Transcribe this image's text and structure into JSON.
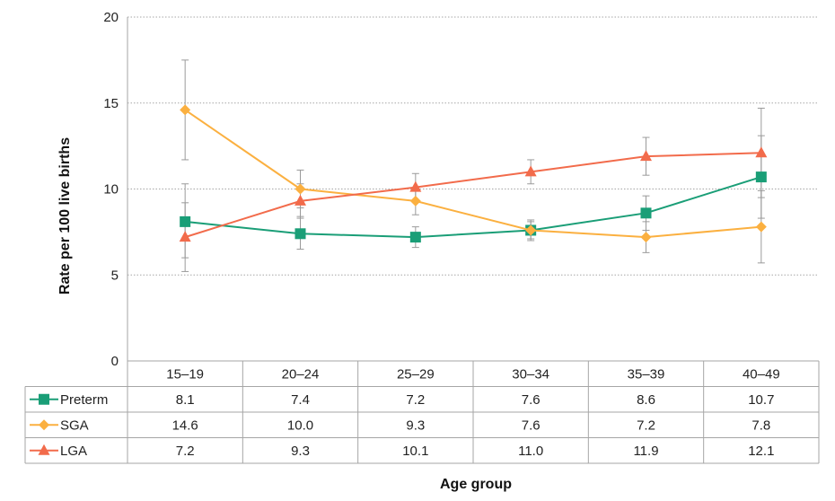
{
  "chart_data": {
    "type": "line",
    "categories": [
      "15–19",
      "20–24",
      "25–29",
      "30–34",
      "35–39",
      "40–49"
    ],
    "series": [
      {
        "name": "Preterm",
        "color": "#1a9e77",
        "marker": "square",
        "values": [
          8.1,
          7.4,
          7.2,
          7.6,
          8.6,
          10.7
        ],
        "labels": [
          "8.1",
          "7.4",
          "7.2",
          "7.6",
          "8.6",
          "10.7"
        ],
        "error_low": [
          6.0,
          6.5,
          6.6,
          7.1,
          7.6,
          8.3
        ],
        "error_high": [
          10.3,
          8.4,
          7.8,
          8.1,
          9.6,
          13.1
        ]
      },
      {
        "name": "SGA",
        "color": "#fbb040",
        "marker": "diamond",
        "values": [
          14.6,
          10.0,
          9.3,
          7.6,
          7.2,
          7.8
        ],
        "labels": [
          "14.6",
          "10.0",
          "9.3",
          "7.6",
          "7.2",
          "7.8"
        ],
        "error_low": [
          11.7,
          8.9,
          8.5,
          7.0,
          6.3,
          5.7
        ],
        "error_high": [
          17.5,
          11.1,
          10.1,
          8.2,
          8.1,
          9.9
        ]
      },
      {
        "name": "LGA",
        "color": "#f26b4b",
        "marker": "triangle",
        "values": [
          7.2,
          9.3,
          10.1,
          11.0,
          11.9,
          12.1
        ],
        "labels": [
          "7.2",
          "9.3",
          "10.1",
          "11.0",
          "11.9",
          "12.1"
        ],
        "error_low": [
          5.2,
          8.3,
          9.3,
          10.3,
          10.8,
          9.5
        ],
        "error_high": [
          9.2,
          10.3,
          10.9,
          11.7,
          13.0,
          14.7
        ]
      }
    ],
    "ylabel": "Rate per 100 live births",
    "xlabel": "Age group",
    "ylim": [
      0,
      20
    ],
    "yticks": [
      0,
      5,
      10,
      15,
      20
    ],
    "ytick_labels": [
      "0",
      "5",
      "10",
      "15",
      "20"
    ],
    "grid": "horizontal dotted",
    "data_table": true
  }
}
